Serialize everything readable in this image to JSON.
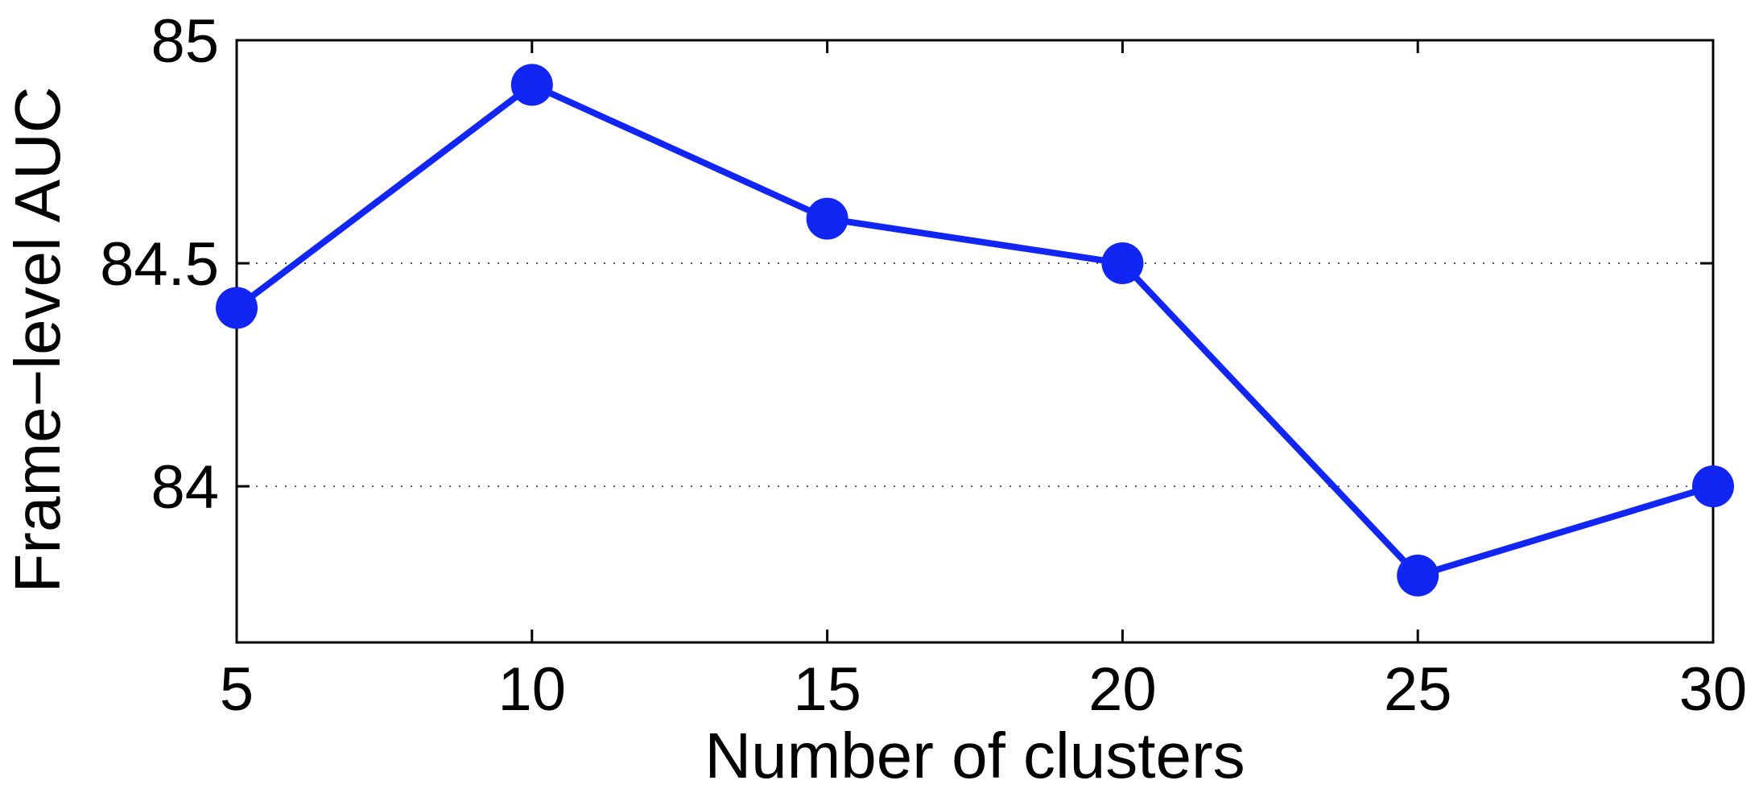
{
  "chart_data": {
    "type": "line",
    "title": "",
    "xlabel": "Number of clusters",
    "ylabel": "Frame−level AUC",
    "x": [
      5,
      10,
      15,
      20,
      25,
      30
    ],
    "series": [
      {
        "values": [
          84.4,
          84.9,
          84.6,
          84.5,
          83.8,
          84.0
        ],
        "color": "#1126f2",
        "marker": "circle"
      }
    ],
    "xlim": [
      5,
      30
    ],
    "ylim": [
      83.65,
      85
    ],
    "xticks": [
      5,
      10,
      15,
      20,
      25,
      30
    ],
    "xtick_labels": [
      "5",
      "10",
      "15",
      "20",
      "25",
      "30"
    ],
    "yticks": [
      84,
      84.5,
      85
    ],
    "ytick_labels": [
      "84",
      "84.5",
      "85"
    ],
    "grid": "horizontal dotted at y ticks",
    "legend": "none"
  }
}
